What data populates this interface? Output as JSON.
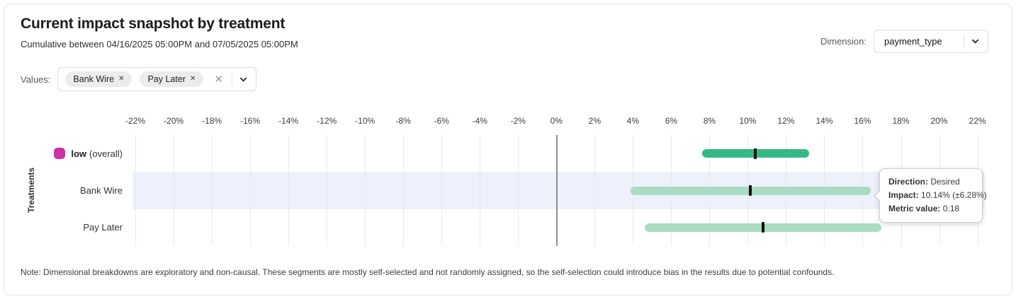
{
  "header": {
    "title": "Current impact snapshot by treatment",
    "subtitle": "Cumulative between 04/16/2025 05:00PM and 07/05/2025 05:00PM",
    "dimension_label": "Dimension:",
    "dimension_value": "payment_type"
  },
  "filters": {
    "values_label": "Values:",
    "chips": [
      {
        "label": "Bank Wire",
        "remove_glyph": "✕"
      },
      {
        "label": "Pay Later",
        "remove_glyph": "✕"
      }
    ],
    "clear_glyph": "✕"
  },
  "chart_data": {
    "type": "bar",
    "subtype": "horizontal-interval",
    "title": "Current impact snapshot by treatment",
    "xlabel": "",
    "ylabel": "Treatments",
    "axis": {
      "min": -22,
      "max": 22,
      "step": 2,
      "unit": "%",
      "tick_values": [
        -22,
        -20,
        -18,
        -16,
        -14,
        -12,
        -10,
        -8,
        -6,
        -4,
        -2,
        0,
        2,
        4,
        6,
        8,
        10,
        12,
        14,
        16,
        18,
        20,
        22
      ],
      "tick_labels": [
        "-22%",
        "-20%",
        "-18%",
        "-16%",
        "-14%",
        "-12%",
        "-10%",
        "-8%",
        "-6%",
        "-4%",
        "-2%",
        "0%",
        "2%",
        "4%",
        "6%",
        "8%",
        "10%",
        "12%",
        "14%",
        "16%",
        "18%",
        "20%",
        "22%"
      ]
    },
    "rows": [
      {
        "name": "low",
        "suffix": "(overall)",
        "bold": true,
        "swatch_color": "#ce2fa8",
        "impact": 10.4,
        "margin": 2.8,
        "bar_color": "#34b885",
        "highlighted": false
      },
      {
        "name": "Bank Wire",
        "suffix": "",
        "bold": false,
        "swatch_color": "",
        "impact": 10.14,
        "margin": 6.28,
        "bar_color": "#a9dcc3",
        "highlighted": true
      },
      {
        "name": "Pay Later",
        "suffix": "",
        "bold": false,
        "swatch_color": "",
        "impact": 10.8,
        "margin": 6.2,
        "bar_color": "#a9dcc3",
        "highlighted": false
      }
    ],
    "colors": {
      "highlight_row": "#eef0fb",
      "grid": "#e9e9e9",
      "zero_line": "#8c8c8c",
      "center_tick": "#101010"
    },
    "grid": true,
    "legend_position": "none"
  },
  "tooltip": {
    "direction_label": "Direction:",
    "direction_value": "Desired",
    "impact_label": "Impact:",
    "impact_value": "10.14% (±6.28%)",
    "metric_label": "Metric value:",
    "metric_value": "0.18"
  },
  "note": "Note: Dimensional breakdowns are exploratory and non-causal. These segments are mostly self-selected and not randomly assigned, so the self-selection could introduce bias in the results due to potential confounds."
}
